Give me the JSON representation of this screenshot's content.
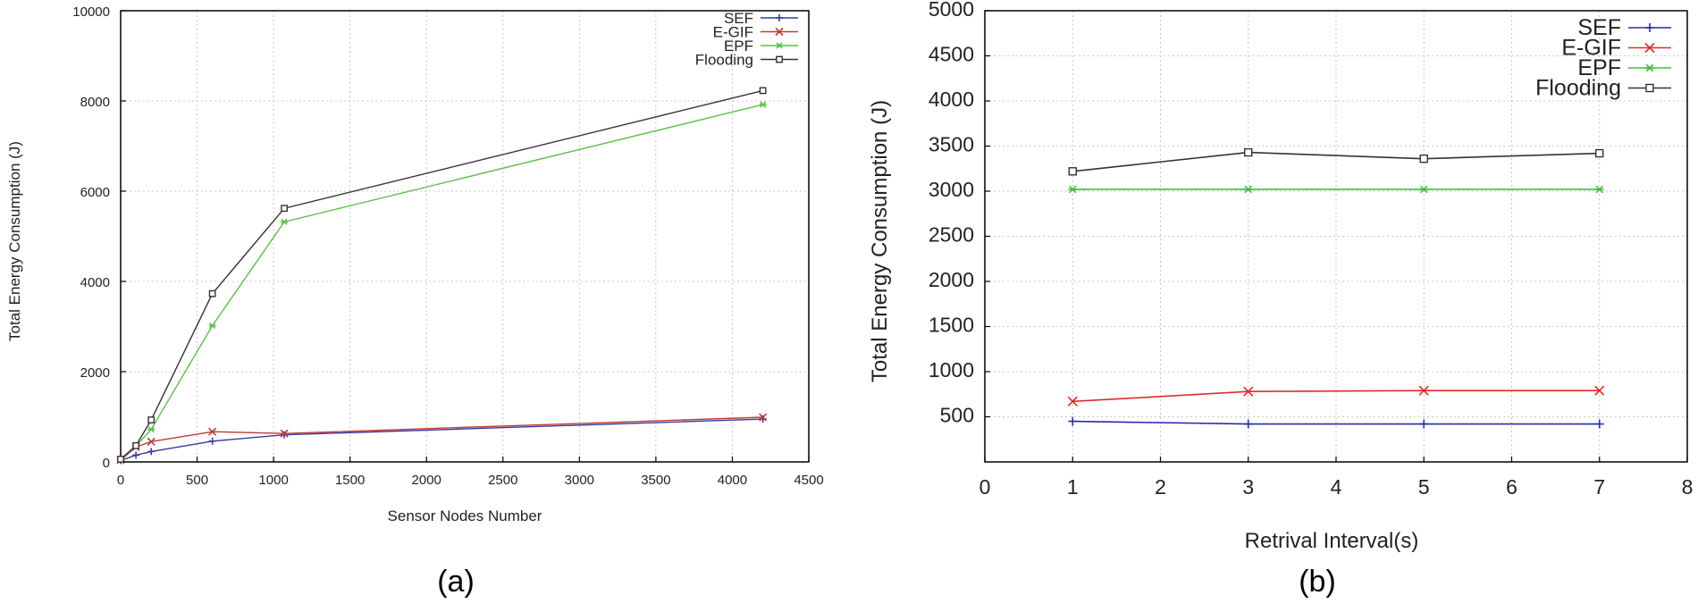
{
  "chart_data": [
    {
      "type": "line",
      "caption": "(a)",
      "title": "",
      "xlabel": "Sensor Nodes Number",
      "ylabel": "Total Energy Consumption (J)",
      "xlim": [
        0,
        4500
      ],
      "ylim": [
        0,
        10000
      ],
      "xticks": [
        0,
        500,
        1000,
        1500,
        2000,
        2500,
        3000,
        3500,
        4000,
        4500
      ],
      "yticks": [
        0,
        2000,
        4000,
        6000,
        8000,
        10000
      ],
      "xtick_labels": [
        "0",
        "500",
        "1000",
        "1500",
        "2000",
        "2500",
        "3000",
        "3500",
        "4000",
        "4500"
      ],
      "ytick_labels": [
        "0",
        "2000",
        "4000",
        "6000",
        "8000",
        "10000"
      ],
      "grid": true,
      "legend_position": "top-right",
      "series": [
        {
          "name": "SEF",
          "color": "#3a3aa0",
          "marker": "plus",
          "x": [
            0,
            100,
            200,
            600,
            1070,
            4200
          ],
          "y": [
            30,
            150,
            230,
            460,
            600,
            950
          ]
        },
        {
          "name": "E-GIF",
          "color": "#c03a3a",
          "marker": "x",
          "x": [
            0,
            100,
            200,
            600,
            1070,
            4200
          ],
          "y": [
            40,
            330,
            450,
            670,
            630,
            990
          ]
        },
        {
          "name": "EPF",
          "color": "#5cc04a",
          "marker": "star",
          "x": [
            0,
            100,
            200,
            600,
            1070,
            4200
          ],
          "y": [
            60,
            350,
            720,
            3020,
            5320,
            7920
          ]
        },
        {
          "name": "Flooding",
          "color": "#333333",
          "marker": "square",
          "x": [
            0,
            100,
            200,
            600,
            1070,
            4200
          ],
          "y": [
            60,
            360,
            930,
            3730,
            5620,
            8230
          ]
        }
      ]
    },
    {
      "type": "line",
      "caption": "(b)",
      "title": "",
      "xlabel": "Retrival Interval(s)",
      "ylabel": "Total Energy Consumption (J)",
      "xlim": [
        0,
        8
      ],
      "ylim": [
        0,
        5000
      ],
      "xticks": [
        0,
        1,
        2,
        3,
        4,
        5,
        6,
        7,
        8
      ],
      "yticks": [
        500,
        1000,
        1500,
        2000,
        2500,
        3000,
        3500,
        4000,
        4500,
        5000
      ],
      "xtick_labels": [
        "0",
        "1",
        "2",
        "3",
        "4",
        "5",
        "6",
        "7",
        "8"
      ],
      "ytick_labels": [
        "500",
        "1000",
        "1500",
        "2000",
        "2500",
        "3000",
        "3500",
        "4000",
        "4500",
        "5000"
      ],
      "grid": true,
      "legend_position": "top-right",
      "series": [
        {
          "name": "SEF",
          "color": "#2a2ab0",
          "marker": "plus",
          "x": [
            1,
            3,
            5,
            7
          ],
          "y": [
            450,
            420,
            420,
            420
          ]
        },
        {
          "name": "E-GIF",
          "color": "#e02a2a",
          "marker": "x",
          "x": [
            1,
            3,
            5,
            7
          ],
          "y": [
            670,
            780,
            790,
            790
          ]
        },
        {
          "name": "EPF",
          "color": "#3cc03c",
          "marker": "star",
          "x": [
            1,
            3,
            5,
            7
          ],
          "y": [
            3020,
            3020,
            3020,
            3020
          ]
        },
        {
          "name": "Flooding",
          "color": "#333333",
          "marker": "square",
          "x": [
            1,
            3,
            5,
            7
          ],
          "y": [
            3220,
            3430,
            3360,
            3420
          ]
        }
      ]
    }
  ]
}
